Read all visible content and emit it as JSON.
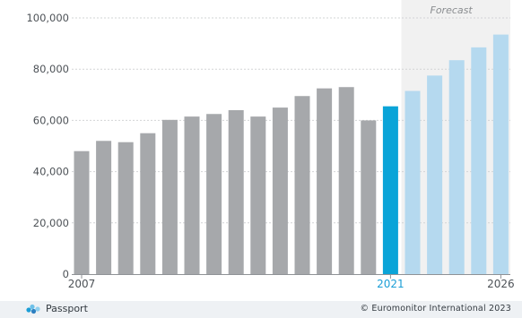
{
  "chart_data": {
    "type": "bar",
    "title": "",
    "xlabel": "",
    "ylabel": "",
    "categories": [
      "2007",
      "2008",
      "2009",
      "2010",
      "2011",
      "2012",
      "2013",
      "2014",
      "2015",
      "2016",
      "2017",
      "2018",
      "2019",
      "2020",
      "2021",
      "2022",
      "2023",
      "2024",
      "2025",
      "2026"
    ],
    "values": [
      48000,
      52000,
      51500,
      55000,
      60200,
      61500,
      62500,
      64000,
      61500,
      65000,
      69500,
      72500,
      73000,
      60000,
      65500,
      71500,
      77500,
      83500,
      88500,
      93500
    ],
    "x_tick_labels": [
      "2007",
      "2021",
      "2026"
    ],
    "highlight_year": "2021",
    "forecast_label": "Forecast",
    "forecast_from": "2022",
    "ylim": [
      0,
      100000
    ],
    "y_ticks": [
      0,
      20000,
      40000,
      60000,
      80000,
      100000
    ],
    "y_tick_labels": [
      "0",
      "20,000",
      "40,000",
      "60,000",
      "80,000",
      "100,000"
    ],
    "grid": true,
    "colors": {
      "historic": "#a6a8ab",
      "current": "#0aa4d8",
      "forecast": "#b5d9ef",
      "forecast_band": "#f1f1f1",
      "highlight_label": "#1b9ed6"
    }
  },
  "footer": {
    "brand_label": "Passport",
    "copyright": "© Euromonitor International 2023"
  }
}
